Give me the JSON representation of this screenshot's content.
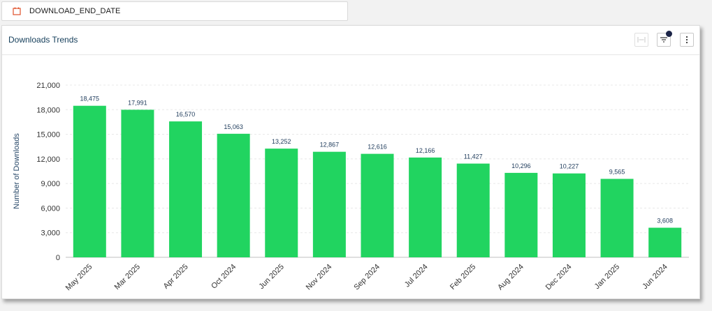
{
  "filter": {
    "label": "DOWNLOAD_END_DATE",
    "icon": "calendar-icon"
  },
  "card": {
    "title": "Downloads Trends",
    "buttons": {
      "fit_icon": "fit-width-icon",
      "filter_icon": "filter-icon",
      "more_icon": "more-vertical-icon"
    }
  },
  "colors": {
    "bar": "#21d460",
    "title": "#17405c",
    "badge": "#1b2447",
    "calendar": "#e0502a"
  },
  "chart_data": {
    "type": "bar",
    "title": "",
    "xlabel": "",
    "ylabel": "Number of Downloads",
    "ylim": [
      0,
      21000
    ],
    "yticks": [
      0,
      3000,
      6000,
      9000,
      12000,
      15000,
      18000,
      21000
    ],
    "ytick_labels": [
      "0",
      "3,000",
      "6,000",
      "9,000",
      "12,000",
      "15,000",
      "18,000",
      "21,000"
    ],
    "grid": true,
    "categories": [
      "May 2025",
      "Mar 2025",
      "Apr 2025",
      "Oct 2024",
      "Jun 2025",
      "Nov 2024",
      "Sep 2024",
      "Jul 2024",
      "Feb 2025",
      "Aug 2024",
      "Dec 2024",
      "Jan 2025",
      "Jun 2024"
    ],
    "values": [
      18475,
      17991,
      16570,
      15063,
      13252,
      12867,
      12616,
      12166,
      11427,
      10296,
      10227,
      9565,
      3608
    ],
    "value_labels": [
      "18,475",
      "17,991",
      "16,570",
      "15,063",
      "13,252",
      "12,867",
      "12,616",
      "12,166",
      "11,427",
      "10,296",
      "10,227",
      "9,565",
      "3,608"
    ]
  }
}
